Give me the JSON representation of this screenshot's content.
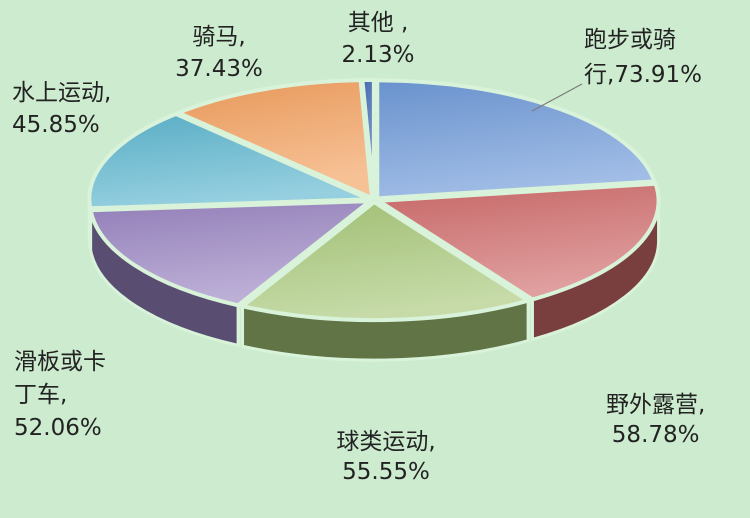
{
  "chart_data": {
    "type": "pie",
    "style": "3d-exploded",
    "slices": [
      {
        "label": "跑步或骑行,",
        "value_label": "73.91%",
        "value": 73.91,
        "color": "#6f9ad8"
      },
      {
        "label": "野外露营,",
        "value_label": "58.78%",
        "value": 58.78,
        "color": "#d06b6b"
      },
      {
        "label": "球类运动,",
        "value_label": "55.55%",
        "value": 55.55,
        "color": "#a8c879"
      },
      {
        "label": "滑板或卡丁车,",
        "value_label": "52.06%",
        "value": 52.06,
        "color": "#9a85c2"
      },
      {
        "label": "水上运动,",
        "value_label": "45.85%",
        "value": 45.85,
        "color": "#5eb6cf"
      },
      {
        "label": "骑马,",
        "value_label": "37.43%",
        "value": 37.43,
        "color": "#f3a05e"
      },
      {
        "label": "其他 ,",
        "value_label": "2.13%",
        "value": 2.13,
        "color": "#4a70b8"
      }
    ]
  },
  "colors": {
    "background": "#cdeccf",
    "separator": "#d9f2da",
    "leader_line": "#7a7a7a"
  }
}
